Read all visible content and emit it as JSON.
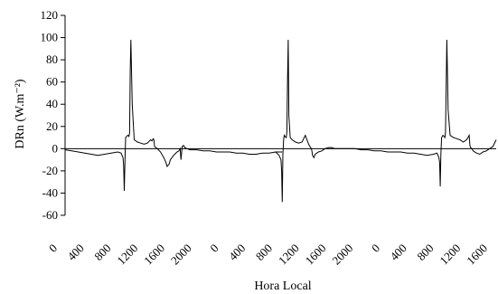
{
  "chart_data": {
    "type": "line",
    "title": "",
    "xlabel": "Hora Local",
    "ylabel": "DRn (W.m⁻²)",
    "ylim": [
      -60,
      120
    ],
    "yticks": [
      -60,
      -40,
      -20,
      0,
      20,
      40,
      60,
      80,
      100,
      120
    ],
    "grid": false,
    "legend": "none",
    "x_tick_labels": [
      "0",
      "400",
      "800",
      "1200",
      "1600",
      "2000",
      "0",
      "400",
      "800",
      "1200",
      "1600",
      "2000",
      "0",
      "400",
      "800",
      "1200",
      "1600"
    ],
    "series": [
      {
        "color": "#000000",
        "x": [
          0,
          100,
          200,
          300,
          400,
          500,
          600,
          700,
          800,
          850,
          880,
          890,
          900,
          910,
          920,
          950,
          960,
          970,
          980,
          990,
          1000,
          1020,
          1050,
          1100,
          1150,
          1200,
          1250,
          1300,
          1320,
          1340,
          1350,
          1360,
          1380,
          1400,
          1450,
          1500,
          1530,
          1550,
          1580,
          1600,
          1650,
          1700,
          1730,
          1750,
          1760,
          1780,
          1800,
          1820,
          1850,
          1900,
          2000,
          2100,
          2200,
          2300,
          2400,
          2500,
          2600,
          2700,
          2800,
          2900,
          3000,
          3100,
          3200,
          3300,
          3200,
          3250,
          3280,
          3290,
          3300,
          3310,
          3320,
          3330,
          3340,
          3360,
          3370,
          3380,
          3390,
          3400,
          3420,
          3450,
          3500,
          3550,
          3600,
          3650,
          3700,
          3720,
          3740,
          3750,
          3760,
          3780,
          3800,
          3850,
          3900,
          3950,
          4000,
          4050,
          4100,
          4150,
          4200,
          4250,
          4300,
          4350,
          4400,
          4500,
          4600,
          4700,
          4800,
          4900,
          5000,
          5100,
          5200,
          5300,
          5400,
          5500,
          5600,
          5650,
          5680,
          5690,
          5700,
          5710,
          5720,
          5740,
          5760,
          5770,
          5780,
          5790,
          5800,
          5820,
          5850,
          5900,
          5950,
          6000,
          6050,
          6100,
          6120,
          6140,
          6150,
          6160,
          6180,
          6200,
          6250,
          6300,
          6350,
          6400,
          6450,
          6500,
          6550
        ],
        "y": [
          -1,
          -2,
          -3,
          -4,
          -5,
          -6,
          -5,
          -4,
          -3,
          -4,
          -8,
          -15,
          -38,
          -10,
          10,
          12,
          12,
          11,
          14,
          70,
          98,
          40,
          8,
          6,
          5,
          4,
          5,
          8,
          7,
          9,
          8,
          2,
          1,
          0,
          -3,
          -8,
          -12,
          -16,
          -14,
          -10,
          -6,
          -3,
          -2,
          0,
          -10,
          2,
          3,
          1,
          0,
          -1,
          -1,
          -2,
          -2,
          -3,
          -3,
          -3,
          -4,
          -4,
          -5,
          -5,
          -4,
          -4,
          -3,
          -3,
          -3,
          -6,
          -10,
          -20,
          -48,
          -5,
          8,
          12,
          11,
          10,
          15,
          60,
          98,
          30,
          10,
          8,
          6,
          5,
          6,
          12,
          4,
          2,
          0,
          -2,
          -6,
          -8,
          -5,
          -3,
          -2,
          0,
          1,
          1,
          0,
          0,
          0,
          0,
          0,
          0,
          0,
          -1,
          -1,
          -2,
          -2,
          -3,
          -3,
          -3,
          -4,
          -4,
          -5,
          -6,
          -5,
          -4,
          -8,
          -12,
          -34,
          -5,
          10,
          12,
          11,
          10,
          14,
          58,
          98,
          35,
          12,
          10,
          9,
          8,
          6,
          8,
          10,
          12,
          3,
          1,
          0,
          -2,
          -4,
          -5,
          -3,
          -2,
          0,
          2,
          8
        ]
      }
    ]
  }
}
